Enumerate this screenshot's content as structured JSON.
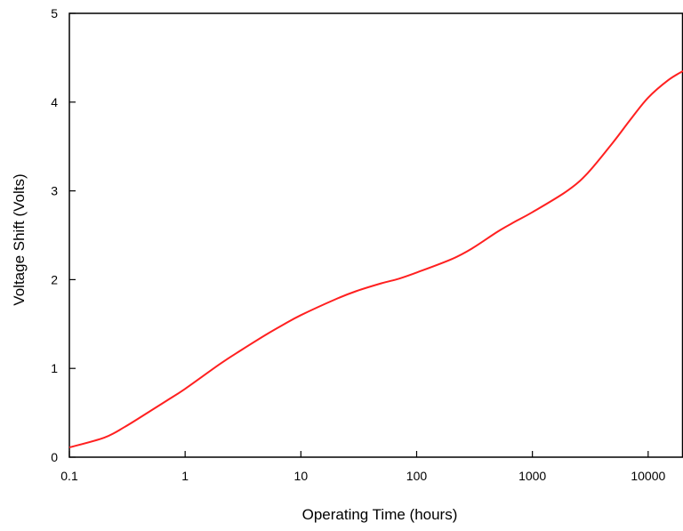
{
  "chart_data": {
    "type": "line",
    "title": "",
    "xlabel": "Operating Time (hours)",
    "ylabel": "Voltage Shift (Volts)",
    "x_scale": "log",
    "xlim": [
      0.1,
      20000
    ],
    "ylim": [
      0,
      5
    ],
    "x_ticks": [
      {
        "value": 0.1,
        "label": "0.1"
      },
      {
        "value": 1,
        "label": "1"
      },
      {
        "value": 10,
        "label": "10"
      },
      {
        "value": 100,
        "label": "100"
      },
      {
        "value": 1000,
        "label": "1000"
      },
      {
        "value": 10000,
        "label": "10000"
      }
    ],
    "y_ticks": [
      {
        "value": 0,
        "label": "0"
      },
      {
        "value": 1,
        "label": "1"
      },
      {
        "value": 2,
        "label": "2"
      },
      {
        "value": 3,
        "label": "3"
      },
      {
        "value": 4,
        "label": "4"
      },
      {
        "value": 5,
        "label": "5"
      }
    ],
    "grid": false,
    "series": [
      {
        "color": "#ff2020",
        "points": [
          [
            0.1,
            0.11
          ],
          [
            0.2,
            0.22
          ],
          [
            0.3,
            0.34
          ],
          [
            0.5,
            0.52
          ],
          [
            0.7,
            0.64
          ],
          [
            1,
            0.77
          ],
          [
            2,
            1.05
          ],
          [
            3,
            1.2
          ],
          [
            5,
            1.38
          ],
          [
            7,
            1.49
          ],
          [
            10,
            1.6
          ],
          [
            20,
            1.78
          ],
          [
            30,
            1.87
          ],
          [
            50,
            1.96
          ],
          [
            70,
            2.01
          ],
          [
            100,
            2.08
          ],
          [
            200,
            2.23
          ],
          [
            300,
            2.35
          ],
          [
            500,
            2.54
          ],
          [
            700,
            2.65
          ],
          [
            1000,
            2.76
          ],
          [
            2000,
            3.0
          ],
          [
            3000,
            3.2
          ],
          [
            5000,
            3.55
          ],
          [
            7000,
            3.8
          ],
          [
            10000,
            4.05
          ],
          [
            15000,
            4.25
          ],
          [
            20000,
            4.35
          ]
        ]
      }
    ]
  }
}
